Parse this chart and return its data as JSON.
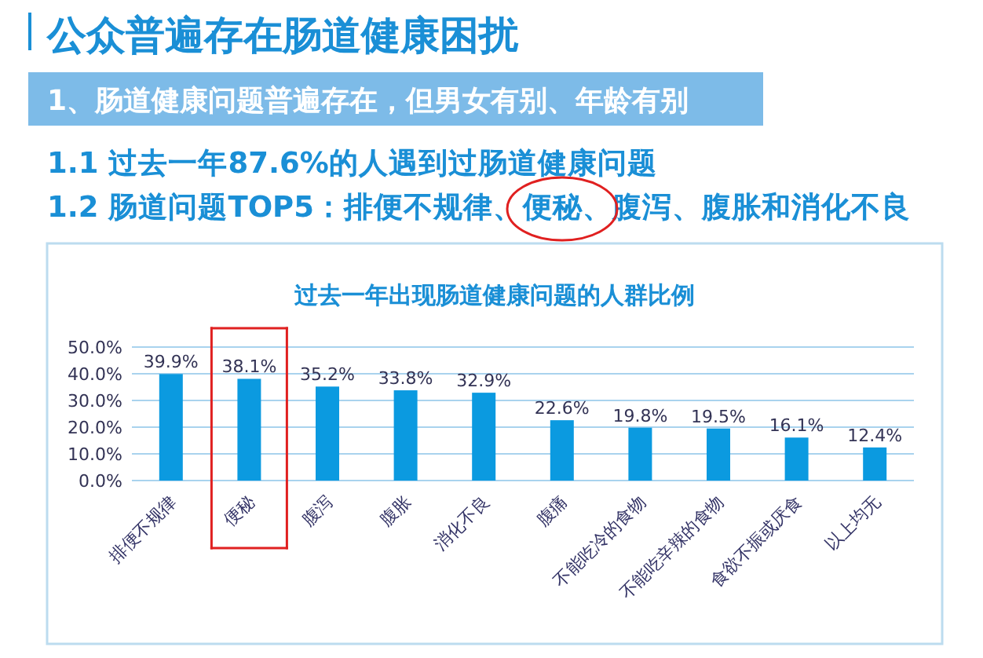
{
  "chart_data": {
    "type": "bar",
    "title": "过去一年出现肠道健康问题的人群比例",
    "annotations": [
      "公众普遍存在肠道健康困扰",
      "1、肠道健康问题普遍存在，但男女有别、年龄有别",
      "1.1 过去一年87.6%的人遇到过肠道健康问题",
      "1.2 肠道问题TOP5：排便不规律、便秘、腹泻、腹胀和消化不良"
    ],
    "categories": [
      "排便不规律",
      "便秘",
      "腹泻",
      "腹胀",
      "消化不良",
      "腹痛",
      "不能吃冷的食物",
      "不能吃辛辣的食物",
      "食欲不振或厌食",
      "以上均无"
    ],
    "values": [
      39.9,
      38.1,
      35.2,
      33.8,
      32.9,
      22.6,
      19.8,
      19.5,
      16.1,
      12.4
    ],
    "value_labels": [
      "39.9%",
      "38.1%",
      "35.2%",
      "33.8%",
      "32.9%",
      "22.6%",
      "19.8%",
      "19.5%",
      "16.1%",
      "12.4%"
    ],
    "color": "#0b9ae0",
    "ylim": [
      0,
      50
    ],
    "yticks": [
      {
        "value": 0,
        "label": "0.0%"
      },
      {
        "value": 10,
        "label": "10.0%"
      },
      {
        "value": 20,
        "label": "20.0%"
      },
      {
        "value": 30,
        "label": "30.0%"
      },
      {
        "value": 40,
        "label": "40.0%"
      },
      {
        "value": 50,
        "label": "50.0%"
      }
    ],
    "grid": "y"
  }
}
